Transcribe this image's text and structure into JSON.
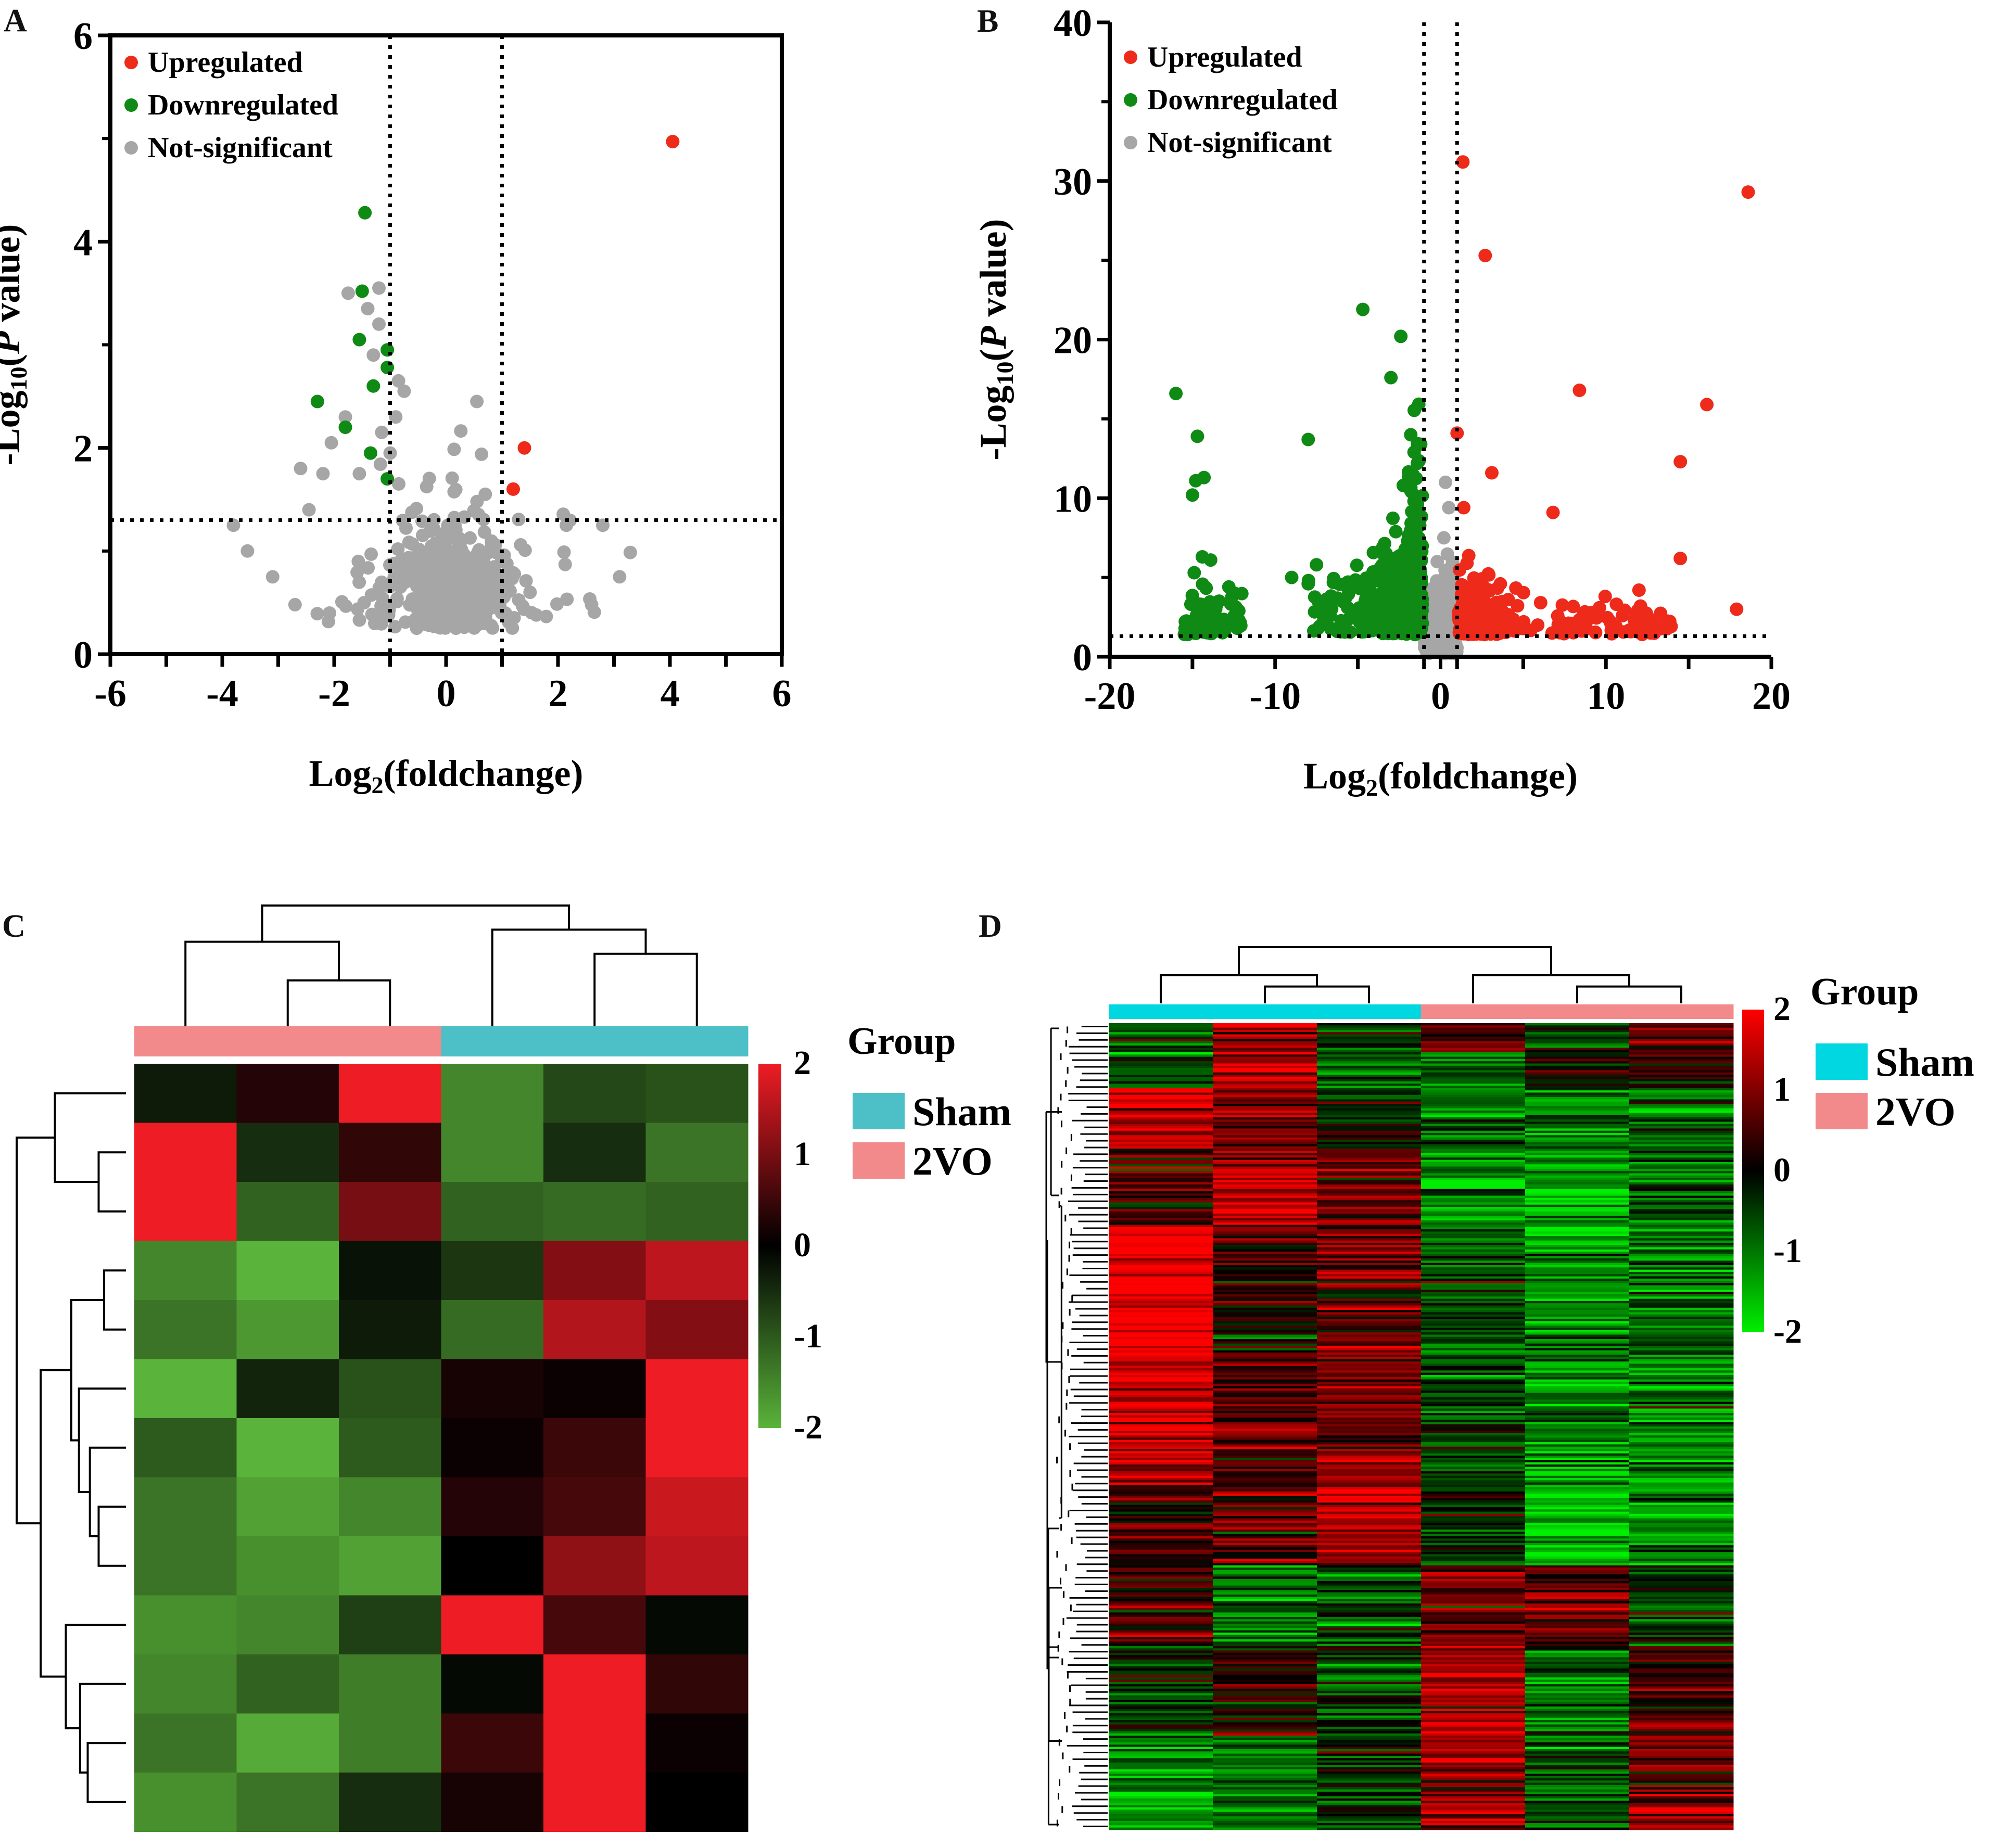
{
  "chart_data": [
    {
      "panel": "A",
      "type": "scatter",
      "title": "",
      "xlabel_main": "Log",
      "xlabel_sub": "2",
      "xlabel_rest": "(foldchange)",
      "ylabel_main": "-Log",
      "ylabel_sub": "10",
      "ylabel_open": "(",
      "ylabel_p": "P",
      "ylabel_rest": " value)",
      "xlim": [
        -6,
        6
      ],
      "ylim": [
        0,
        6
      ],
      "xticks": [
        -6,
        -4,
        -2,
        0,
        2,
        4,
        6
      ],
      "yticks": [
        0,
        2,
        4,
        6
      ],
      "vlines": [
        -1,
        1
      ],
      "hline": 1.3,
      "legend": [
        "Upregulated",
        "Downregulated",
        "Not-significant"
      ],
      "colors": {
        "up": "#ee2a1b",
        "down": "#0f8a14",
        "ns": "#a6a6a6"
      },
      "up": [
        [
          4.05,
          4.97
        ],
        [
          1.4,
          2.0
        ],
        [
          1.2,
          1.6
        ]
      ],
      "down": [
        [
          -1.45,
          4.28
        ],
        [
          -1.5,
          3.52
        ],
        [
          -1.55,
          3.05
        ],
        [
          -1.05,
          2.95
        ],
        [
          -1.05,
          2.78
        ],
        [
          -1.3,
          2.6
        ],
        [
          -2.3,
          2.45
        ],
        [
          -1.8,
          2.2
        ],
        [
          -1.35,
          1.95
        ],
        [
          -1.05,
          1.7
        ]
      ],
      "ns_anchors": [
        [
          -1.2,
          3.55
        ],
        [
          -1.75,
          3.5
        ],
        [
          -1.4,
          3.35
        ],
        [
          -1.2,
          3.2
        ],
        [
          -1.3,
          2.9
        ],
        [
          -0.85,
          2.65
        ],
        [
          -0.75,
          2.55
        ],
        [
          0.55,
          2.45
        ],
        [
          -0.9,
          2.3
        ],
        [
          -1.15,
          2.15
        ],
        [
          -1.8,
          2.3
        ],
        [
          -2.05,
          2.05
        ],
        [
          -1.0,
          1.95
        ],
        [
          -2.6,
          1.8
        ],
        [
          -1.55,
          1.75
        ],
        [
          -2.2,
          1.75
        ],
        [
          -3.8,
          1.25
        ],
        [
          -3.55,
          1.0
        ],
        [
          -3.1,
          0.75
        ],
        [
          -2.7,
          0.48
        ],
        [
          2.8,
          1.25
        ],
        [
          3.1,
          0.75
        ],
        [
          2.6,
          0.48
        ],
        [
          1.5,
          0.6
        ],
        [
          2.15,
          1.25
        ],
        [
          -2.45,
          1.4
        ],
        [
          0.7,
          1.55
        ],
        [
          -0.35,
          0.3
        ],
        [
          0.2,
          0.3
        ]
      ],
      "ns_count": 420
    },
    {
      "panel": "B",
      "type": "scatter",
      "title": "",
      "xlabel_main": "Log",
      "xlabel_sub": "2",
      "xlabel_rest": "(foldchange)",
      "ylabel_main": "-Log",
      "ylabel_sub": "10",
      "ylabel_open": "(",
      "ylabel_p": "P",
      "ylabel_rest": " value)",
      "xlim": [
        -20,
        20
      ],
      "ylim": [
        0,
        40
      ],
      "xticks": [
        -20,
        -10,
        0,
        10,
        20
      ],
      "yticks": [
        0,
        10,
        20,
        30,
        40
      ],
      "vlines": [
        -1,
        1
      ],
      "hline": 1.3,
      "legend": [
        "Upregulated",
        "Downregulated",
        "Not-significant"
      ],
      "colors": {
        "up": "#ee2a1b",
        "down": "#0f8a14",
        "ns": "#a6a6a6"
      },
      "up": [
        [
          1.35,
          31.2
        ],
        [
          18.6,
          29.3
        ],
        [
          2.7,
          25.3
        ],
        [
          8.4,
          16.8
        ],
        [
          16.1,
          15.9
        ],
        [
          1.0,
          14.1
        ],
        [
          14.5,
          12.3
        ],
        [
          3.1,
          11.6
        ],
        [
          1.4,
          9.4
        ],
        [
          6.8,
          9.1
        ],
        [
          14.5,
          6.2
        ],
        [
          12.0,
          4.2
        ],
        [
          17.9,
          3.0
        ],
        [
          1.6,
          5.9
        ]
      ],
      "down": [
        [
          -4.7,
          21.9
        ],
        [
          -2.4,
          20.2
        ],
        [
          -3.0,
          17.6
        ],
        [
          -16.0,
          16.6
        ],
        [
          -14.7,
          13.9
        ],
        [
          -8.0,
          13.7
        ],
        [
          -14.3,
          11.3
        ],
        [
          -14.8,
          11.1
        ],
        [
          -15.0,
          10.2
        ],
        [
          -14.4,
          6.3
        ],
        [
          -13.9,
          6.1
        ],
        [
          -7.5,
          5.8
        ],
        [
          -8.0,
          4.6
        ],
        [
          -12.8,
          4.4
        ],
        [
          -9.0,
          5.0
        ],
        [
          -1.8,
          14.0
        ],
        [
          -1.2,
          13.4
        ],
        [
          -1.6,
          12.9
        ],
        [
          -1.4,
          12.2
        ]
      ],
      "ns_anchors": [
        [
          0.3,
          11.0
        ],
        [
          0.5,
          9.4
        ],
        [
          0.2,
          7.5
        ],
        [
          -0.2,
          6.0
        ],
        [
          0.6,
          5.6
        ],
        [
          0.1,
          4.2
        ],
        [
          -0.5,
          3.8
        ]
      ],
      "down_cloud_count": 520,
      "up_cloud_count": 300,
      "ns_count": 220
    },
    {
      "panel": "C",
      "type": "heatmap",
      "legend_title": "Group",
      "groups": [
        "Sham",
        "2VO"
      ],
      "group_colors": {
        "Sham": "#4cbfc7",
        "2VO": "#f2898b"
      },
      "column_groups": [
        "2VO",
        "2VO",
        "2VO",
        "Sham",
        "Sham",
        "Sham"
      ],
      "scale": {
        "min": -2,
        "max": 2,
        "ticks": [
          2,
          1,
          0,
          -1,
          -2
        ],
        "low": "#5ab33a",
        "mid": "#000000",
        "high": "#ee1c25"
      },
      "values": [
        [
          -0.3,
          0.3,
          2.0,
          -1.5,
          -0.8,
          -0.9
        ],
        [
          2.2,
          -0.5,
          0.4,
          -1.5,
          -0.5,
          -1.3
        ],
        [
          2.2,
          -1.1,
          1.0,
          -1.1,
          -1.2,
          -1.1
        ],
        [
          -1.5,
          -2.0,
          -0.2,
          -0.6,
          1.1,
          1.6
        ],
        [
          -1.3,
          -1.7,
          -0.3,
          -1.2,
          1.5,
          1.1
        ],
        [
          -2.2,
          -0.4,
          -0.9,
          0.2,
          0.1,
          2.2
        ],
        [
          -1.0,
          -2.1,
          -1.0,
          0.1,
          0.5,
          2.0
        ],
        [
          -1.3,
          -1.8,
          -1.5,
          0.3,
          0.6,
          1.7
        ],
        [
          -1.3,
          -1.6,
          -1.8,
          0.0,
          1.2,
          1.6
        ],
        [
          -1.6,
          -1.5,
          -0.7,
          2.0,
          0.6,
          -0.1
        ],
        [
          -1.5,
          -1.1,
          -1.4,
          -0.1,
          2.2,
          0.4
        ],
        [
          -1.3,
          -1.9,
          -1.4,
          0.5,
          2.0,
          0.1
        ],
        [
          -1.6,
          -1.3,
          -0.5,
          0.2,
          2.2,
          0.0
        ]
      ]
    },
    {
      "panel": "D",
      "type": "heatmap",
      "legend_title": "Group",
      "groups": [
        "Sham",
        "2VO"
      ],
      "group_colors": {
        "Sham": "#00d7e0",
        "2VO": "#f2898b"
      },
      "column_groups": [
        "Sham",
        "Sham",
        "Sham",
        "2VO",
        "2VO",
        "2VO"
      ],
      "scale": {
        "min": -2,
        "max": 2,
        "ticks": [
          2,
          1,
          0,
          -1,
          -2
        ],
        "low": "#00ee00",
        "mid": "#000000",
        "high": "#ff0000"
      },
      "rows": 360,
      "blocks": [
        {
          "frac": 0.035,
          "means": [
            -0.6,
            1.2,
            -0.4,
            0.6,
            -0.3,
            0.7
          ]
        },
        {
          "frac": 0.045,
          "means": [
            -0.5,
            1.3,
            -0.8,
            -0.6,
            0.2,
            0.4
          ]
        },
        {
          "frac": 0.075,
          "means": [
            1.5,
            1.0,
            -0.2,
            -0.8,
            -1.1,
            -0.9
          ]
        },
        {
          "frac": 0.095,
          "means": [
            0.3,
            1.4,
            0.9,
            -1.0,
            -1.4,
            -0.8
          ]
        },
        {
          "frac": 0.16,
          "means": [
            1.9,
            0.3,
            0.6,
            -0.7,
            -1.2,
            -0.9
          ]
        },
        {
          "frac": 0.16,
          "means": [
            1.4,
            0.6,
            0.9,
            -0.5,
            -1.1,
            -1.1
          ]
        },
        {
          "frac": 0.1,
          "means": [
            0.5,
            0.7,
            1.4,
            -0.2,
            -1.5,
            -1.1
          ]
        },
        {
          "frac": 0.1,
          "means": [
            0.5,
            -0.9,
            -0.7,
            0.8,
            0.6,
            -0.3
          ]
        },
        {
          "frac": 0.11,
          "means": [
            -0.5,
            0.3,
            -0.4,
            1.3,
            -0.9,
            0.5
          ]
        },
        {
          "frac": 0.12,
          "means": [
            -1.1,
            -0.9,
            -0.2,
            1.1,
            -0.6,
            0.8
          ]
        }
      ]
    }
  ]
}
